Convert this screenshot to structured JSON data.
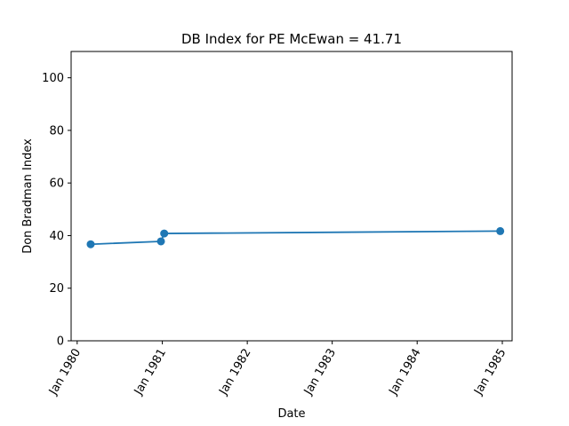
{
  "chart_data": {
    "type": "line",
    "title": "DB Index for PE McEwan = 41.71",
    "xlabel": "Date",
    "ylabel": "Don Bradman Index",
    "x_ticks": [
      "Jan 1980",
      "Jan 1981",
      "Jan 1982",
      "Jan 1983",
      "Jan 1984",
      "Jan 1985"
    ],
    "xlim": [
      "1979-12-06",
      "1985-02-12"
    ],
    "ylim": [
      0,
      110
    ],
    "y_ticks": [
      0,
      20,
      40,
      60,
      80,
      100
    ],
    "grid": false,
    "series": [
      {
        "color": "#1f77b4",
        "marker": "circle",
        "points": [
          {
            "x": "1980-02-28",
            "y": 36.7
          },
          {
            "x": "1980-12-26",
            "y": 37.8
          },
          {
            "x": "1981-01-09",
            "y": 40.8
          },
          {
            "x": "1984-12-23",
            "y": 41.71
          }
        ]
      }
    ]
  }
}
